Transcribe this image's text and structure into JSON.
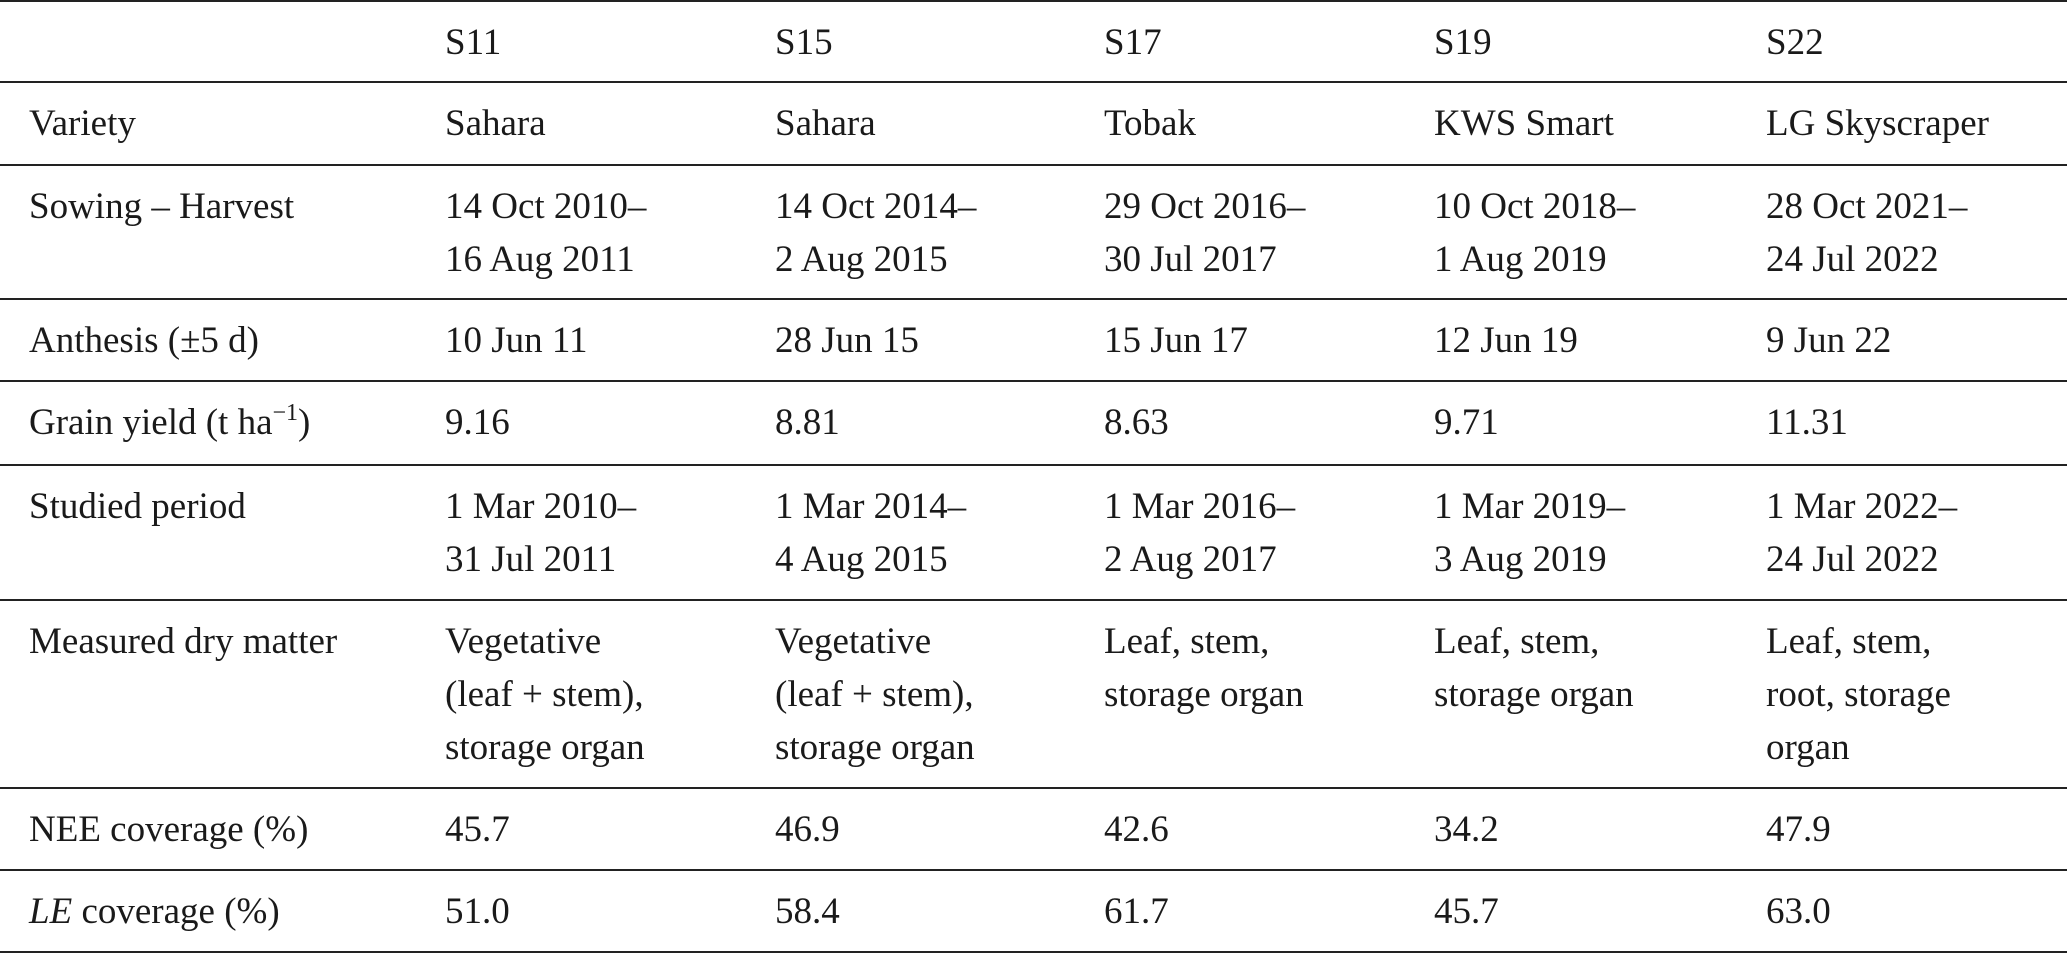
{
  "table": {
    "header": [
      "S11",
      "S15",
      "S17",
      "S19",
      "S22"
    ],
    "rows": [
      {
        "label": "Variety",
        "cells": [
          [
            "Sahara"
          ],
          [
            "Sahara"
          ],
          [
            "Tobak"
          ],
          [
            "KWS Smart"
          ],
          [
            "LG Skyscraper"
          ]
        ]
      },
      {
        "label": "Sowing – Harvest",
        "cells": [
          [
            "14 Oct 2010–",
            "16 Aug 2011"
          ],
          [
            "14 Oct 2014–",
            "2 Aug 2015"
          ],
          [
            "29 Oct 2016–",
            "30 Jul 2017"
          ],
          [
            "10 Oct 2018–",
            "1 Aug 2019"
          ],
          [
            "28 Oct 2021–",
            "24 Jul 2022"
          ]
        ]
      },
      {
        "label": "Anthesis (±5 d)",
        "cells": [
          [
            "10 Jun 11"
          ],
          [
            "28 Jun 15"
          ],
          [
            "15 Jun 17"
          ],
          [
            "12 Jun 19"
          ],
          [
            "9 Jun 22"
          ]
        ]
      },
      {
        "label": "Grain yield (t ha",
        "label_sup": "−1",
        "label_after": ")",
        "cells": [
          [
            "9.16"
          ],
          [
            "8.81"
          ],
          [
            "8.63"
          ],
          [
            "9.71"
          ],
          [
            "11.31"
          ]
        ]
      },
      {
        "label": "Studied period",
        "cells": [
          [
            "1 Mar 2010–",
            "31 Jul 2011"
          ],
          [
            "1 Mar 2014–",
            "4 Aug 2015"
          ],
          [
            "1 Mar 2016–",
            "2 Aug 2017"
          ],
          [
            "1 Mar 2019–",
            "3 Aug 2019"
          ],
          [
            "1 Mar 2022–",
            "24 Jul 2022"
          ]
        ]
      },
      {
        "label": "Measured dry matter",
        "cells": [
          [
            "Vegetative",
            "(leaf + stem),",
            "storage organ"
          ],
          [
            "Vegetative",
            "(leaf + stem),",
            "storage organ"
          ],
          [
            "Leaf, stem,",
            "storage organ"
          ],
          [
            "Leaf, stem,",
            "storage organ"
          ],
          [
            "Leaf, stem,",
            "root, storage",
            "organ"
          ]
        ]
      },
      {
        "label": "NEE coverage (%)",
        "cells": [
          [
            "45.7"
          ],
          [
            "46.9"
          ],
          [
            "42.6"
          ],
          [
            "34.2"
          ],
          [
            "47.9"
          ]
        ]
      },
      {
        "label_italic": "LE",
        "label": " coverage (%)",
        "cells": [
          [
            "51.0"
          ],
          [
            "58.4"
          ],
          [
            "61.7"
          ],
          [
            "45.7"
          ],
          [
            "63.0"
          ]
        ]
      }
    ]
  }
}
